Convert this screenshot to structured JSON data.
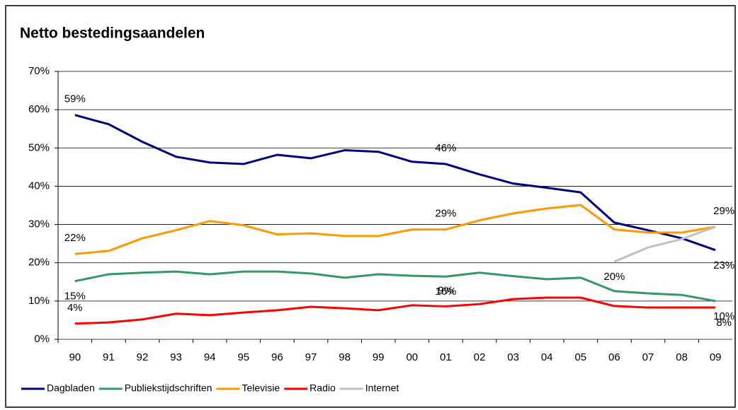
{
  "chart_data": {
    "type": "line",
    "title": "Netto bestedingsaandelen",
    "categories": [
      "90",
      "91",
      "92",
      "93",
      "94",
      "95",
      "96",
      "97",
      "98",
      "99",
      "00",
      "01",
      "02",
      "03",
      "04",
      "05",
      "06",
      "07",
      "08",
      "09"
    ],
    "ylim": [
      0,
      70
    ],
    "yticks": [
      {
        "value": 0,
        "label": "0%"
      },
      {
        "value": 10,
        "label": "10%"
      },
      {
        "value": 20,
        "label": "20%"
      },
      {
        "value": 30,
        "label": "30%"
      },
      {
        "value": 40,
        "label": "40%"
      },
      {
        "value": 50,
        "label": "50%"
      },
      {
        "value": 60,
        "label": "60%"
      },
      {
        "value": 70,
        "label": "70%"
      }
    ],
    "grid": true,
    "legend": "bottom",
    "series": [
      {
        "name": "Dagbladen",
        "color": "#000080",
        "values": [
          58.6,
          56.2,
          51.6,
          47.7,
          46.2,
          45.8,
          48.2,
          47.3,
          49.4,
          49.0,
          46.4,
          45.8,
          43.1,
          40.7,
          39.6,
          38.4,
          30.5,
          28.5,
          26.4,
          23.3
        ],
        "value_labels": [
          "59%",
          null,
          null,
          null,
          null,
          null,
          null,
          null,
          null,
          null,
          null,
          "46%",
          null,
          null,
          null,
          null,
          null,
          null,
          null,
          "23%"
        ]
      },
      {
        "name": "Publiekstijdschriften",
        "color": "#339966",
        "values": [
          15.2,
          17.0,
          17.4,
          17.7,
          17.0,
          17.7,
          17.7,
          17.2,
          16.1,
          17.0,
          16.6,
          16.4,
          17.4,
          16.5,
          15.7,
          16.1,
          12.6,
          12.0,
          11.6,
          10.0
        ],
        "value_labels": [
          "15%",
          null,
          null,
          null,
          null,
          null,
          null,
          null,
          null,
          null,
          null,
          "16%",
          null,
          null,
          null,
          null,
          null,
          null,
          null,
          "10%"
        ]
      },
      {
        "name": "Televisie",
        "color": "#ff9900",
        "values": [
          22.3,
          23.1,
          26.4,
          28.5,
          30.9,
          29.8,
          27.4,
          27.7,
          27.0,
          27.0,
          28.7,
          28.7,
          31.1,
          32.9,
          34.2,
          35.1,
          28.7,
          27.9,
          27.9,
          29.4
        ],
        "value_labels": [
          "22%",
          null,
          null,
          null,
          null,
          null,
          null,
          null,
          null,
          null,
          null,
          "29%",
          null,
          null,
          null,
          null,
          null,
          null,
          null,
          "29%"
        ]
      },
      {
        "name": "Radio",
        "color": "#ff0000",
        "values": [
          4.1,
          4.4,
          5.2,
          6.7,
          6.3,
          7.0,
          7.6,
          8.5,
          8.1,
          7.6,
          8.9,
          8.6,
          9.2,
          10.5,
          10.9,
          10.9,
          8.7,
          8.3,
          8.3,
          8.3
        ],
        "value_labels": [
          "4%",
          null,
          null,
          null,
          null,
          null,
          null,
          null,
          null,
          null,
          null,
          "9%",
          null,
          null,
          null,
          null,
          null,
          null,
          null,
          "8%"
        ]
      },
      {
        "name": "Internet",
        "color": "#c0c0c0",
        "values": [
          null,
          null,
          null,
          null,
          null,
          null,
          null,
          null,
          null,
          null,
          null,
          null,
          null,
          null,
          null,
          null,
          20.3,
          24.0,
          26.2,
          29.4
        ],
        "value_labels": [
          null,
          null,
          null,
          null,
          null,
          null,
          null,
          null,
          null,
          null,
          null,
          null,
          null,
          null,
          null,
          null,
          "20%",
          null,
          null,
          null
        ]
      }
    ]
  }
}
